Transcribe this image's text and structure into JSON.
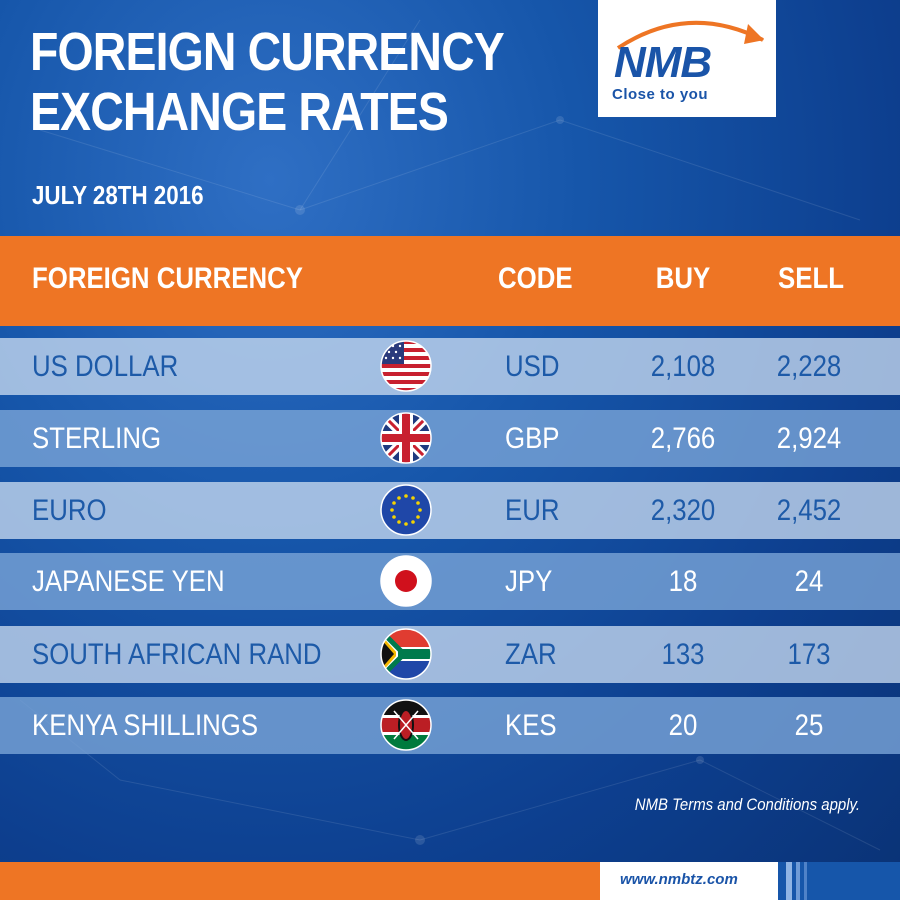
{
  "title_line1": "FOREIGN CURRENCY",
  "title_line2": "EXCHANGE RATES",
  "date": "JULY 28TH 2016",
  "logo": {
    "name": "NMB",
    "tagline": "Close to you"
  },
  "table": {
    "headers": {
      "currency": "FOREIGN CURRENCY",
      "code": "CODE",
      "buy": "BUY",
      "sell": "SELL"
    },
    "rows": [
      {
        "name": "US DOLLAR",
        "flag": "us-flag-icon",
        "code": "USD",
        "buy": "2,108",
        "sell": "2,228"
      },
      {
        "name": "STERLING",
        "flag": "uk-flag-icon",
        "code": "GBP",
        "buy": "2,766",
        "sell": "2,924"
      },
      {
        "name": "EURO",
        "flag": "eu-flag-icon",
        "code": "EUR",
        "buy": "2,320",
        "sell": "2,452"
      },
      {
        "name": "JAPANESE YEN",
        "flag": "japan-flag-icon",
        "code": "JPY",
        "buy": "18",
        "sell": "24"
      },
      {
        "name": "SOUTH AFRICAN RAND",
        "flag": "south-africa-flag-icon",
        "code": "ZAR",
        "buy": "133",
        "sell": "173"
      },
      {
        "name": "KENYA SHILLINGS",
        "flag": "kenya-flag-icon",
        "code": "KES",
        "buy": "20",
        "sell": "25"
      }
    ]
  },
  "terms": "NMB Terms and Conditions apply.",
  "footer_url": "www.nmbtz.com",
  "colors": {
    "brand_blue": "#1a54a8",
    "accent_orange": "#ee7524",
    "background": "#1656aa"
  }
}
